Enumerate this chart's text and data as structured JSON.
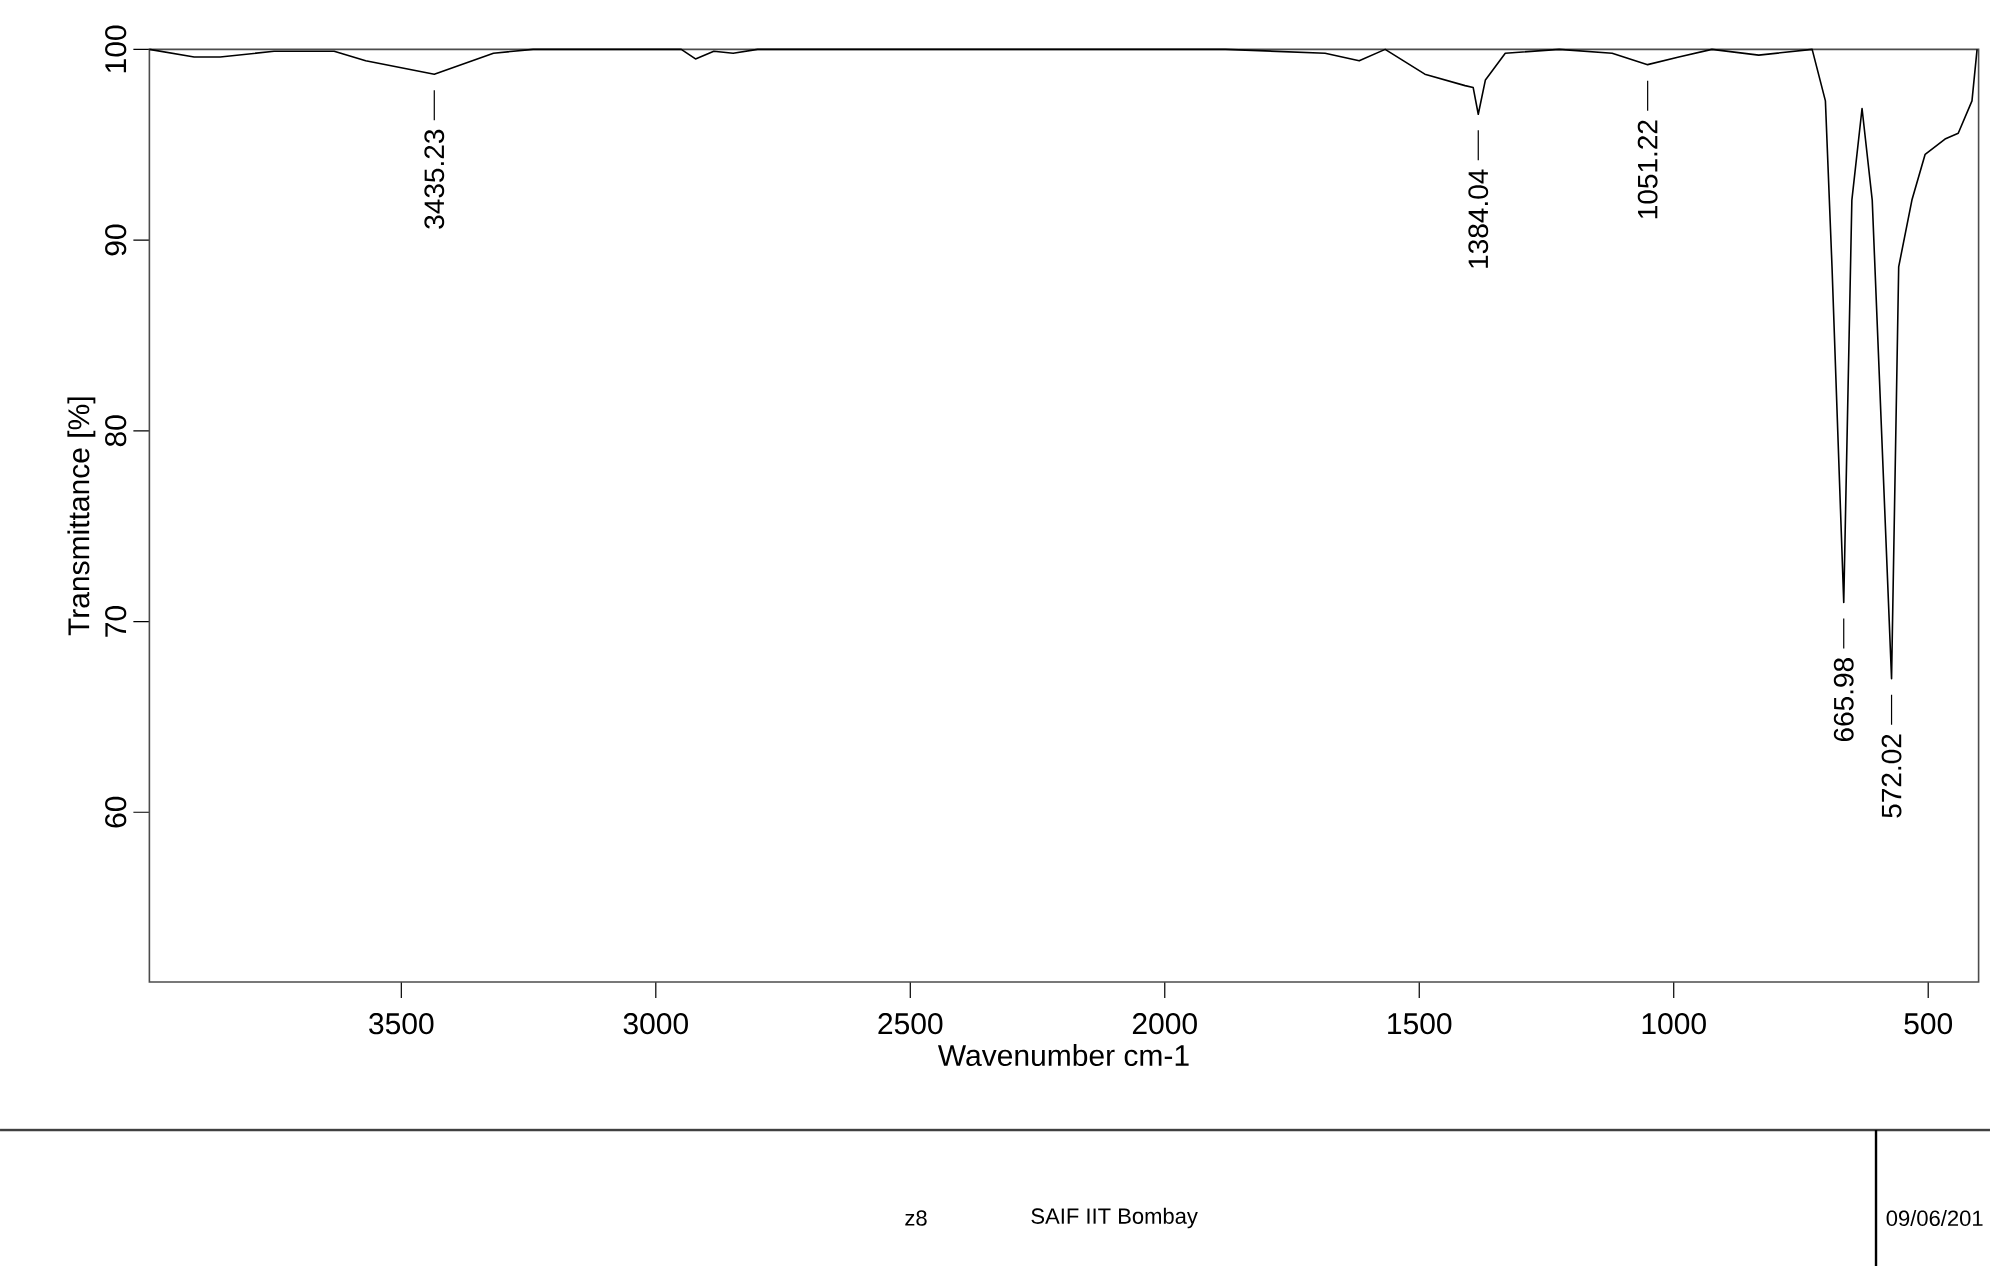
{
  "chart_data": {
    "type": "line",
    "xlabel": "Wavenumber cm-1",
    "ylabel": "Transmittance [%]",
    "xlim": [
      3995,
      401
    ],
    "ylim": [
      51.1,
      100
    ],
    "xticks": [
      3500,
      3000,
      2500,
      2000,
      1500,
      1000,
      500
    ],
    "yticks": [
      60,
      70,
      80,
      90,
      100
    ],
    "series": [
      {
        "color": "#000000",
        "x": [
          3995,
          3907,
          3856,
          3750,
          3632,
          3570,
          3435.23,
          3319,
          3241,
          2950,
          2922,
          2886,
          2848,
          2800,
          2325,
          1881,
          1685,
          1618,
          1567,
          1489,
          1410,
          1394,
          1384.04,
          1370,
          1331,
          1225,
          1121,
          1051.22,
          990,
          925,
          833,
          728,
          702,
          689,
          665.98,
          650,
          630,
          610,
          572.02,
          558,
          532,
          506,
          467,
          441,
          414,
          404
        ],
        "values": [
          100,
          99.6,
          99.6,
          99.9,
          99.9,
          99.4,
          98.7,
          99.8,
          100,
          100,
          99.5,
          99.9,
          99.8,
          100,
          100,
          100,
          99.8,
          99.4,
          100,
          98.7,
          98.1,
          98.0,
          96.6,
          98.4,
          99.8,
          100,
          99.8,
          99.2,
          99.6,
          100,
          99.7,
          100,
          97.3,
          88.6,
          71.0,
          92.1,
          96.9,
          92.1,
          67.0,
          88.6,
          92.1,
          94.5,
          95.3,
          95.6,
          97.3,
          100
        ]
      }
    ],
    "annotations": [
      {
        "text": "3435.23",
        "x": 3435.23,
        "y": 98.7
      },
      {
        "text": "1384.04",
        "x": 1384.04,
        "y": 96.6
      },
      {
        "text": "1051.22",
        "x": 1051.22,
        "y": 99.2
      },
      {
        "text": "665.98",
        "x": 665.98,
        "y": 71.0
      },
      {
        "text": "572.02",
        "x": 572.02,
        "y": 67.0
      },
      "z8",
      "SAIF IIT Bombay",
      "09/06/201"
    ]
  }
}
